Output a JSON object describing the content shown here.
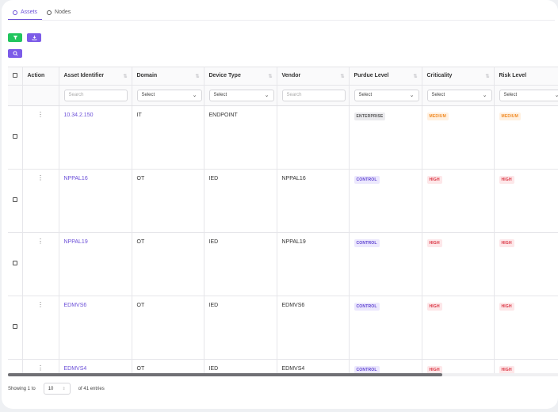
{
  "tabs": [
    {
      "label": "Assets",
      "active": true
    },
    {
      "label": "Nodes",
      "active": false
    }
  ],
  "toolbar": {
    "filter_icon": "filter-icon",
    "export_icon": "download-icon",
    "search_icon": "search-icon"
  },
  "table": {
    "columns": [
      {
        "label": "Action"
      },
      {
        "label": "Asset Identifier"
      },
      {
        "label": "Domain"
      },
      {
        "label": "Device Type"
      },
      {
        "label": "Vendor"
      },
      {
        "label": "Purdue Level"
      },
      {
        "label": "Criticality"
      },
      {
        "label": "Risk Level"
      }
    ],
    "filters": {
      "asset_placeholder": "Search",
      "domain": "Select",
      "device_type": "Select",
      "vendor_placeholder": "Search",
      "purdue": "Select",
      "criticality": "Select",
      "risk": "Select"
    },
    "rows": [
      {
        "asset": "10.34.2.150",
        "domain": "IT",
        "device_type": "ENDPOINT",
        "vendor": "",
        "purdue": "ENTERPRISE",
        "criticality": "MEDIUM",
        "risk": "MEDIUM"
      },
      {
        "asset": "NPPAL16",
        "domain": "OT",
        "device_type": "IED",
        "vendor": "NPPAL16",
        "purdue": "CONTROL",
        "criticality": "HIGH",
        "risk": "HIGH"
      },
      {
        "asset": "NPPAL19",
        "domain": "OT",
        "device_type": "IED",
        "vendor": "NPPAL19",
        "purdue": "CONTROL",
        "criticality": "HIGH",
        "risk": "HIGH"
      },
      {
        "asset": "EDMVS6",
        "domain": "OT",
        "device_type": "IED",
        "vendor": "EDMVS6",
        "purdue": "CONTROL",
        "criticality": "HIGH",
        "risk": "HIGH"
      },
      {
        "asset": "EDMVS4",
        "domain": "OT",
        "device_type": "IED",
        "vendor": "EDMVS4",
        "purdue": "CONTROL",
        "criticality": "HIGH",
        "risk": "HIGH"
      }
    ]
  },
  "footer": {
    "showing_prefix": "Showing 1 to",
    "page_size": "10",
    "showing_suffix": "of 41 entries"
  },
  "colors": {
    "accent": "#6b4fd8",
    "filter_button": "#22c55e",
    "high": "#d9313f",
    "medium": "#f08a24"
  }
}
